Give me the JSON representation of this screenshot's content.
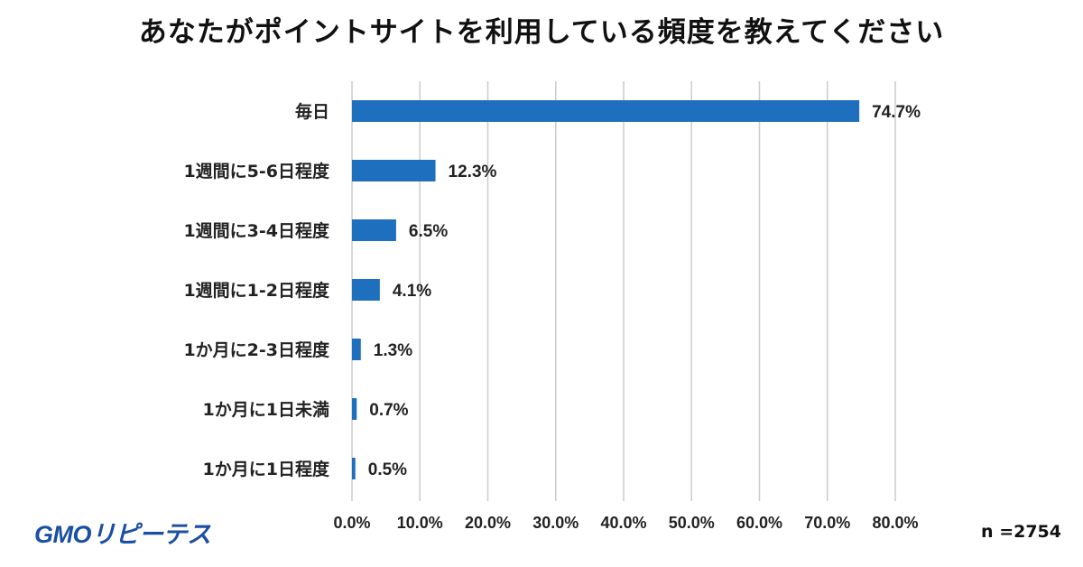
{
  "title": "あなたがポイントサイトを利用している頻度を教えてください",
  "logo": {
    "main": "GMO",
    "sub": "リピーテス"
  },
  "sample_size": "n =2754",
  "colors": {
    "bar": "#1f6fbf",
    "grid": "#cccccc"
  },
  "chart_data": {
    "type": "bar",
    "orientation": "horizontal",
    "categories": [
      "毎日",
      "1週間に5‐6日程度",
      "1週間に3‐4日程度",
      "1週間に1‐2日程度",
      "1か月に2‐3日程度",
      "1か月に1日未満",
      "1か月に1日程度"
    ],
    "values": [
      74.7,
      12.3,
      6.5,
      4.1,
      1.3,
      0.7,
      0.5
    ],
    "data_labels": [
      "74.7%",
      "12.3%",
      "6.5%",
      "4.1%",
      "1.3%",
      "0.7%",
      "0.5%"
    ],
    "xlim": [
      0,
      80
    ],
    "xticks": [
      "0.0%",
      "10.0%",
      "20.0%",
      "30.0%",
      "40.0%",
      "50.0%",
      "60.0%",
      "70.0%",
      "80.0%"
    ],
    "xlabel": "",
    "ylabel": "",
    "grid": true,
    "legend": "none"
  }
}
